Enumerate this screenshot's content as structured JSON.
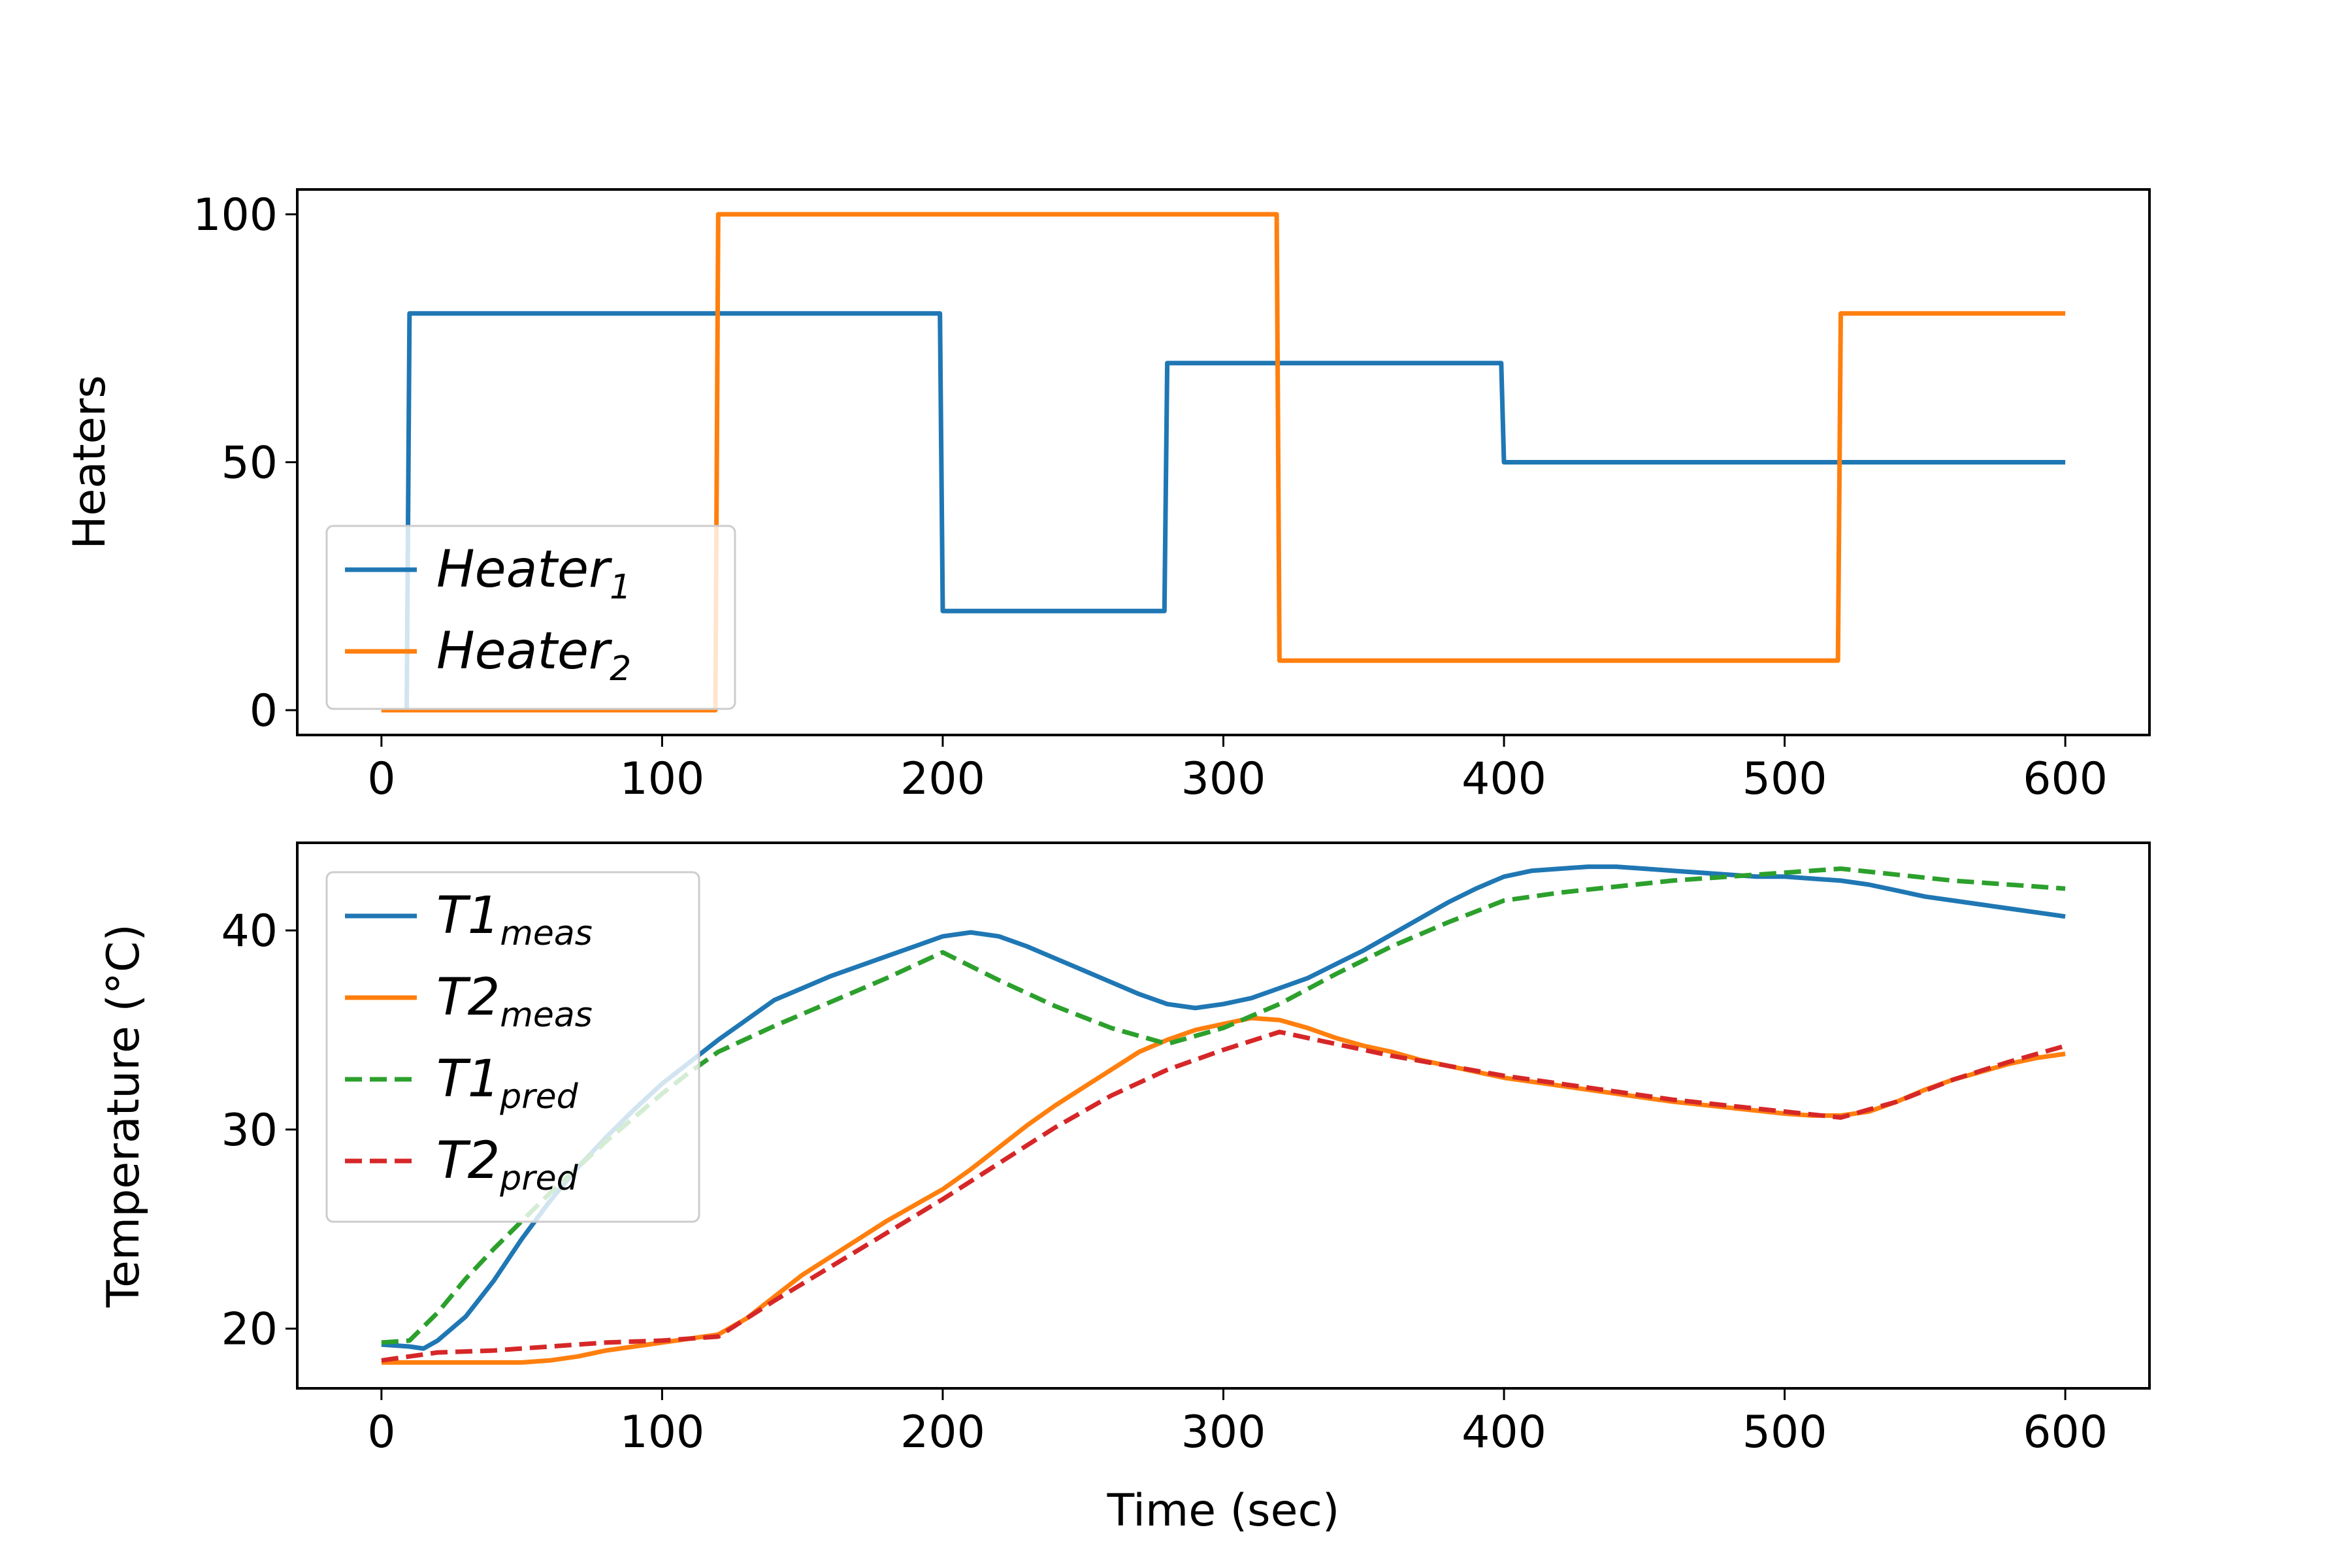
{
  "chart_data": [
    {
      "type": "line",
      "title": "",
      "xlabel": "",
      "ylabel": "Heaters",
      "xlim": [
        -30,
        630
      ],
      "ylim": [
        -5,
        105
      ],
      "xticks": [
        0,
        100,
        200,
        300,
        400,
        500,
        600
      ],
      "yticks": [
        0,
        50,
        100
      ],
      "xtick_labels": [
        "0",
        "100",
        "200",
        "300",
        "400",
        "500",
        "600"
      ],
      "ytick_labels": [
        "0",
        "50",
        "100"
      ],
      "legend_position": "lower-left",
      "series": [
        {
          "name": "Heater1",
          "legend_main": "Heater",
          "legend_sub": "1",
          "color": "#1f77b4",
          "style": "solid",
          "x": [
            0,
            9,
            10,
            199,
            200,
            279,
            280,
            399,
            400,
            600
          ],
          "y": [
            0,
            0,
            80,
            80,
            20,
            20,
            70,
            70,
            50,
            50
          ]
        },
        {
          "name": "Heater2",
          "legend_main": "Heater",
          "legend_sub": "2",
          "color": "#ff7f0e",
          "style": "solid",
          "x": [
            0,
            119,
            120,
            319,
            320,
            519,
            520,
            600
          ],
          "y": [
            0,
            0,
            100,
            100,
            10,
            10,
            80,
            80
          ]
        }
      ]
    },
    {
      "type": "line",
      "title": "",
      "xlabel": "Time (sec)",
      "ylabel": "Temperature (°C)",
      "xlim": [
        -30,
        630
      ],
      "ylim": [
        17,
        44.4
      ],
      "xticks": [
        0,
        100,
        200,
        300,
        400,
        500,
        600
      ],
      "yticks": [
        20,
        30,
        40
      ],
      "xtick_labels": [
        "0",
        "100",
        "200",
        "300",
        "400",
        "500",
        "600"
      ],
      "ytick_labels": [
        "20",
        "30",
        "40"
      ],
      "legend_position": "upper-left",
      "series": [
        {
          "name": "T1meas",
          "legend_main": "T1",
          "legend_sub": "meas",
          "color": "#1f77b4",
          "style": "solid",
          "x": [
            0,
            10,
            15,
            20,
            30,
            40,
            50,
            60,
            70,
            80,
            90,
            100,
            110,
            120,
            130,
            140,
            150,
            160,
            170,
            180,
            190,
            200,
            210,
            220,
            230,
            240,
            250,
            260,
            270,
            280,
            290,
            300,
            310,
            320,
            330,
            340,
            350,
            360,
            370,
            380,
            390,
            400,
            410,
            420,
            430,
            440,
            450,
            460,
            470,
            480,
            490,
            500,
            510,
            520,
            530,
            540,
            550,
            560,
            570,
            580,
            590,
            600
          ],
          "y": [
            19.2,
            19.1,
            19.0,
            19.4,
            20.6,
            22.4,
            24.5,
            26.4,
            28.1,
            29.6,
            31.0,
            32.3,
            33.4,
            34.5,
            35.5,
            36.5,
            37.1,
            37.7,
            38.2,
            38.7,
            39.2,
            39.7,
            39.9,
            39.7,
            39.2,
            38.6,
            38.0,
            37.4,
            36.8,
            36.3,
            36.1,
            36.3,
            36.6,
            37.1,
            37.6,
            38.3,
            39.0,
            39.8,
            40.6,
            41.4,
            42.1,
            42.7,
            43.0,
            43.1,
            43.2,
            43.2,
            43.1,
            43.0,
            42.9,
            42.8,
            42.7,
            42.7,
            42.6,
            42.5,
            42.3,
            42.0,
            41.7,
            41.5,
            41.3,
            41.1,
            40.9,
            40.7
          ]
        },
        {
          "name": "T2meas",
          "legend_main": "T2",
          "legend_sub": "meas",
          "color": "#ff7f0e",
          "style": "solid",
          "x": [
            0,
            10,
            20,
            30,
            40,
            50,
            60,
            70,
            80,
            90,
            100,
            110,
            120,
            130,
            140,
            150,
            160,
            170,
            180,
            190,
            200,
            210,
            220,
            230,
            240,
            250,
            260,
            270,
            280,
            290,
            300,
            310,
            320,
            330,
            340,
            350,
            360,
            370,
            380,
            390,
            400,
            420,
            440,
            460,
            480,
            500,
            510,
            520,
            530,
            540,
            550,
            560,
            570,
            580,
            590,
            600
          ],
          "y": [
            18.3,
            18.3,
            18.3,
            18.3,
            18.3,
            18.3,
            18.4,
            18.6,
            18.9,
            19.1,
            19.3,
            19.5,
            19.7,
            20.5,
            21.6,
            22.7,
            23.6,
            24.5,
            25.4,
            26.2,
            27.0,
            28.0,
            29.1,
            30.2,
            31.2,
            32.1,
            33.0,
            33.9,
            34.5,
            35.0,
            35.3,
            35.6,
            35.5,
            35.1,
            34.6,
            34.2,
            33.9,
            33.5,
            33.2,
            32.9,
            32.6,
            32.2,
            31.8,
            31.4,
            31.1,
            30.8,
            30.7,
            30.7,
            30.9,
            31.4,
            32.0,
            32.5,
            32.9,
            33.3,
            33.6,
            33.8
          ]
        },
        {
          "name": "T1pred",
          "legend_main": "T1",
          "legend_sub": "pred",
          "color": "#2ca02c",
          "style": "dashed",
          "x": [
            0,
            10,
            20,
            30,
            40,
            50,
            60,
            70,
            80,
            90,
            100,
            110,
            120,
            140,
            160,
            180,
            200,
            220,
            240,
            260,
            280,
            300,
            320,
            340,
            360,
            380,
            400,
            420,
            440,
            460,
            480,
            500,
            520,
            540,
            560,
            580,
            600
          ],
          "y": [
            19.3,
            19.4,
            20.8,
            22.5,
            24.0,
            25.4,
            26.8,
            28.1,
            29.4,
            30.6,
            31.8,
            32.9,
            33.9,
            35.2,
            36.4,
            37.6,
            38.9,
            37.5,
            36.2,
            35.1,
            34.3,
            35.1,
            36.3,
            37.8,
            39.2,
            40.4,
            41.5,
            41.9,
            42.2,
            42.5,
            42.7,
            42.9,
            43.1,
            42.8,
            42.5,
            42.3,
            42.1
          ]
        },
        {
          "name": "T2pred",
          "legend_main": "T2",
          "legend_sub": "pred",
          "color": "#d62728",
          "style": "dashed",
          "x": [
            0,
            20,
            40,
            60,
            80,
            100,
            120,
            140,
            160,
            180,
            200,
            220,
            240,
            260,
            280,
            300,
            320,
            340,
            360,
            380,
            400,
            420,
            440,
            460,
            480,
            500,
            520,
            540,
            560,
            580,
            600
          ],
          "y": [
            18.4,
            18.8,
            18.9,
            19.1,
            19.3,
            19.4,
            19.6,
            21.4,
            23.1,
            24.8,
            26.5,
            28.3,
            30.1,
            31.7,
            33.0,
            34.0,
            34.9,
            34.3,
            33.7,
            33.2,
            32.7,
            32.3,
            31.9,
            31.5,
            31.2,
            30.9,
            30.6,
            31.4,
            32.5,
            33.4,
            34.2
          ]
        }
      ]
    }
  ]
}
